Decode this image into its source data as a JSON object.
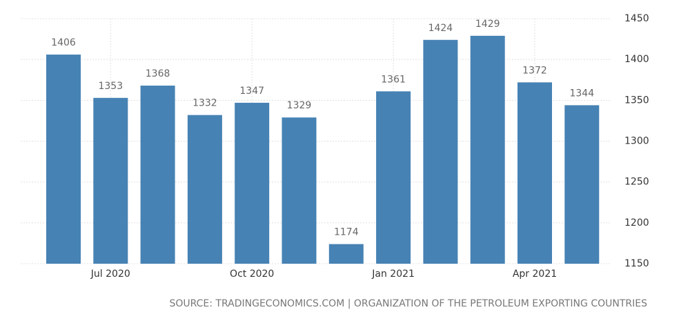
{
  "chart_data": {
    "type": "bar",
    "categories": [
      null,
      "Jul 2020",
      null,
      null,
      "Oct 2020",
      null,
      null,
      "Jan 2021",
      null,
      null,
      "Apr 2021",
      null
    ],
    "values": [
      1406,
      1353,
      1368,
      1332,
      1347,
      1329,
      1174,
      1361,
      1424,
      1429,
      1372,
      1344
    ],
    "color": "#4682b4",
    "ylim": [
      1150,
      1450
    ],
    "yticks": [
      1150,
      1200,
      1250,
      1300,
      1350,
      1400,
      1450
    ],
    "grid": true,
    "y_axis_side": "right",
    "source": "SOURCE: TRADINGECONOMICS.COM | ORGANIZATION OF THE PETROLEUM EXPORTING COUNTRIES"
  }
}
